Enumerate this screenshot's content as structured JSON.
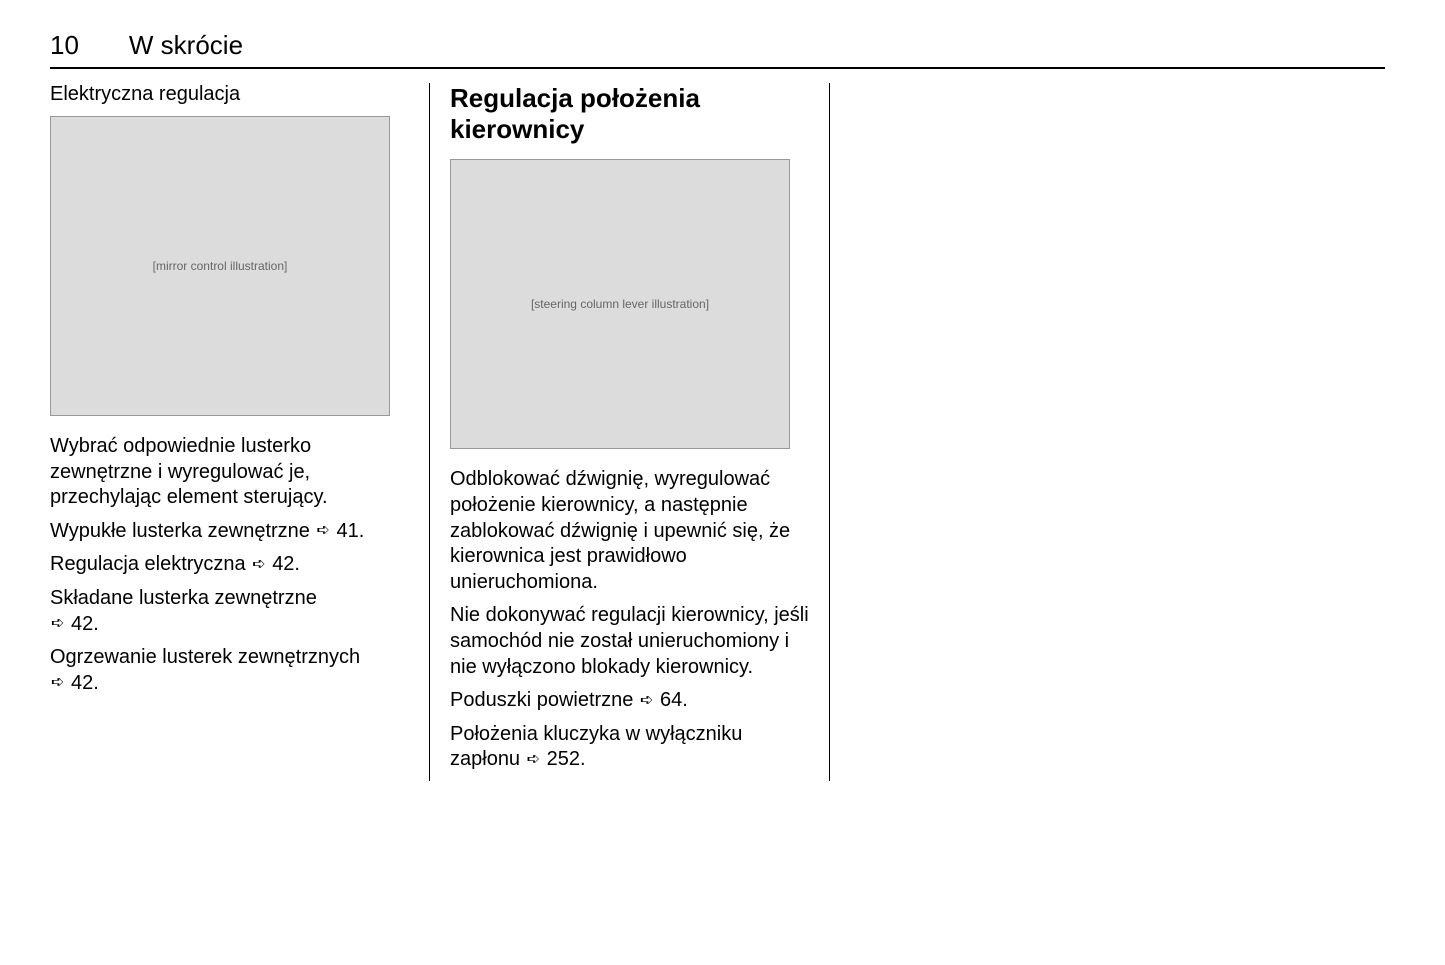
{
  "page_number": "10",
  "chapter_title": "W skrócie",
  "col1": {
    "subheading": "Elektryczna regulacja",
    "figure_alt": "[mirror control illustration]",
    "p1": "Wybrać odpowiednie lusterko zewnętrzne i wyregulować je, przechylając element sterujący.",
    "p2_text": "Wypukłe lusterka zewnętrzne",
    "p2_ref": "41.",
    "p3_text": "Regulacja elektryczna",
    "p3_ref": "42.",
    "p4_text": "Składane lusterka zewnętrzne",
    "p4_ref": "42.",
    "p5_text": "Ogrzewanie lusterek zewnętrznych",
    "p5_ref": "42."
  },
  "col2": {
    "heading": "Regulacja położenia kierownicy",
    "figure_alt": "[steering column lever illustration]",
    "p1": "Odblokować dźwignię, wyregulować położenie kierownicy, a następnie zablokować dźwignię i upewnić się, że kierownica jest prawidłowo unieruchomiona.",
    "p2": "Nie dokonywać regulacji kierownicy, jeśli samochód nie został unieruchomiony i nie wyłączono blokady kierownicy.",
    "p3_text": "Poduszki powietrzne",
    "p3_ref": "64.",
    "p4_text": "Położenia kluczyka w wyłączniku zapłonu",
    "p4_ref": "252."
  },
  "ref_arrow_glyph": "➪"
}
